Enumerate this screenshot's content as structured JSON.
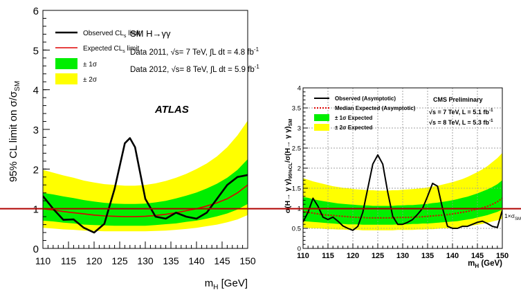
{
  "chart_data": [
    {
      "type": "line",
      "experiment": "ATLAS",
      "title": "ATLAS",
      "xlabel": "m",
      "xlabel_sub": "H",
      "xlabel_unit": " [GeV]",
      "ylabel": "95% CL limit on σ/σ",
      "ylabel_sub": "SM",
      "xlim": [
        110,
        150
      ],
      "ylim": [
        0,
        6
      ],
      "xticks": [
        110,
        115,
        120,
        125,
        130,
        135,
        140,
        145,
        150
      ],
      "yticks": [
        0,
        1,
        2,
        3,
        4,
        5,
        6
      ],
      "legend": {
        "observed": "Observed CL",
        "observed_sub": "s",
        "observed_suffix": " limit",
        "expected": "Expected CL",
        "expected_sub": "s",
        "expected_suffix": " limit",
        "one_sigma": "± 1σ",
        "two_sigma": "± 2σ"
      },
      "info": {
        "channel": "SM H→γγ",
        "line1_pre": "Data 2011, √s= 7 TeV, ∫L dt = 4.8 fb",
        "line1_sup": "-1",
        "line2_pre": "Data 2012, √s= 8 TeV, ∫L dt = 5.9 fb",
        "line2_sup": "-1"
      },
      "x": [
        110,
        112,
        114,
        116,
        118,
        120,
        122,
        124,
        126,
        127,
        128,
        130,
        132,
        134,
        136,
        138,
        140,
        142,
        144,
        146,
        148,
        150
      ],
      "observed": [
        1.32,
        1.0,
        0.72,
        0.73,
        0.52,
        0.4,
        0.62,
        1.5,
        2.65,
        2.78,
        2.55,
        1.25,
        0.8,
        0.75,
        0.9,
        0.8,
        0.75,
        0.9,
        1.25,
        1.6,
        1.8,
        1.85
      ],
      "expected": [
        1.0,
        0.97,
        0.93,
        0.9,
        0.87,
        0.84,
        0.82,
        0.81,
        0.8,
        0.8,
        0.8,
        0.81,
        0.83,
        0.86,
        0.9,
        0.95,
        1.0,
        1.07,
        1.15,
        1.25,
        1.4,
        1.6
      ],
      "band_1sigma": {
        "low": [
          0.7,
          0.68,
          0.65,
          0.63,
          0.6,
          0.59,
          0.58,
          0.57,
          0.57,
          0.57,
          0.57,
          0.57,
          0.59,
          0.61,
          0.63,
          0.67,
          0.7,
          0.75,
          0.81,
          0.88,
          0.98,
          1.12
        ],
        "high": [
          1.4,
          1.36,
          1.31,
          1.27,
          1.22,
          1.18,
          1.15,
          1.13,
          1.12,
          1.12,
          1.12,
          1.13,
          1.16,
          1.2,
          1.26,
          1.33,
          1.41,
          1.51,
          1.63,
          1.78,
          1.98,
          2.25
        ]
      },
      "band_2sigma": {
        "low": [
          0.52,
          0.5,
          0.48,
          0.47,
          0.45,
          0.44,
          0.43,
          0.43,
          0.43,
          0.43,
          0.43,
          0.43,
          0.44,
          0.45,
          0.47,
          0.49,
          0.52,
          0.56,
          0.6,
          0.66,
          0.73,
          0.84
        ],
        "high": [
          1.98,
          1.91,
          1.84,
          1.78,
          1.71,
          1.66,
          1.62,
          1.6,
          1.58,
          1.58,
          1.58,
          1.6,
          1.64,
          1.7,
          1.78,
          1.88,
          2.0,
          2.14,
          2.32,
          2.55,
          2.85,
          3.22
        ]
      },
      "colors": {
        "one_sigma": "#00ee00",
        "two_sigma": "#ffff00",
        "observed": "#000000",
        "expected": "#dd0000"
      }
    },
    {
      "type": "line",
      "experiment": "CMS",
      "title": "CMS Preliminary",
      "xlabel": "m",
      "xlabel_sub": "H",
      "xlabel_unit": " (GeV)",
      "ylabel": "σ(H→ γ γ)",
      "ylabel_sub1": "95%CL",
      "ylabel_mid": "/σ(H→ γ γ)",
      "ylabel_sub2": "SM",
      "xlim": [
        110,
        150
      ],
      "ylim": [
        0,
        4
      ],
      "xticks": [
        110,
        115,
        120,
        125,
        130,
        135,
        140,
        145,
        150
      ],
      "yticks": [
        0,
        0.5,
        1,
        1.5,
        2,
        2.5,
        3,
        3.5,
        4
      ],
      "ytick_labels": [
        "0",
        "0.5",
        "1",
        "1.5",
        "2",
        "2.5",
        "3",
        "3.5",
        "4"
      ],
      "legend": {
        "observed": "Observed (Asymptotic)",
        "expected": "Median Expected (Asymptotic)",
        "one_sigma": "± 1σ Expected",
        "two_sigma": "± 2σ Expected"
      },
      "info": {
        "line1_pre": "√s = 7 TeV, L = 5.1 fb",
        "line1_sup": "-1",
        "line2_pre": "√s = 8 TeV, L = 5.3 fb",
        "line2_sup": "-1"
      },
      "annotation": {
        "text": "1×σ",
        "sub": "SM"
      },
      "x": [
        110,
        111,
        112,
        113,
        114,
        115,
        116,
        117,
        118,
        119,
        120,
        121,
        122,
        123,
        124,
        125,
        126,
        127,
        128,
        129,
        130,
        131,
        132,
        133,
        134,
        135,
        136,
        137,
        138,
        139,
        140,
        141,
        142,
        143,
        144,
        145,
        146,
        147,
        148,
        149,
        150
      ],
      "observed": [
        0.66,
        0.9,
        1.25,
        1.05,
        0.78,
        0.72,
        0.78,
        0.68,
        0.56,
        0.5,
        0.45,
        0.55,
        0.9,
        1.5,
        2.1,
        2.33,
        2.1,
        1.4,
        0.8,
        0.6,
        0.6,
        0.65,
        0.72,
        0.85,
        1.0,
        1.3,
        1.62,
        1.55,
        1.0,
        0.55,
        0.5,
        0.5,
        0.55,
        0.55,
        0.6,
        0.65,
        0.68,
        0.62,
        0.55,
        0.52,
        0.95
      ],
      "expected": [
        0.92,
        0.9,
        0.88,
        0.86,
        0.84,
        0.83,
        0.82,
        0.81,
        0.8,
        0.79,
        0.78,
        0.77,
        0.77,
        0.76,
        0.76,
        0.76,
        0.76,
        0.76,
        0.76,
        0.77,
        0.77,
        0.77,
        0.78,
        0.78,
        0.79,
        0.8,
        0.81,
        0.82,
        0.83,
        0.84,
        0.86,
        0.88,
        0.9,
        0.92,
        0.95,
        0.98,
        1.01,
        1.05,
        1.1,
        1.16,
        1.25
      ],
      "band_1sigma": {
        "low": [
          0.68,
          0.67,
          0.66,
          0.65,
          0.64,
          0.63,
          0.62,
          0.61,
          0.61,
          0.6,
          0.6,
          0.6,
          0.59,
          0.59,
          0.59,
          0.59,
          0.59,
          0.59,
          0.59,
          0.6,
          0.6,
          0.6,
          0.61,
          0.61,
          0.62,
          0.62,
          0.63,
          0.64,
          0.65,
          0.66,
          0.67,
          0.68,
          0.7,
          0.72,
          0.74,
          0.77,
          0.8,
          0.83,
          0.87,
          0.91,
          0.97
        ],
        "high": [
          1.28,
          1.26,
          1.23,
          1.2,
          1.18,
          1.16,
          1.14,
          1.12,
          1.11,
          1.1,
          1.09,
          1.08,
          1.07,
          1.07,
          1.06,
          1.06,
          1.06,
          1.06,
          1.06,
          1.07,
          1.07,
          1.08,
          1.08,
          1.09,
          1.1,
          1.11,
          1.13,
          1.14,
          1.16,
          1.18,
          1.2,
          1.23,
          1.26,
          1.29,
          1.33,
          1.37,
          1.42,
          1.47,
          1.53,
          1.6,
          1.7
        ]
      },
      "band_2sigma": {
        "low": [
          0.52,
          0.51,
          0.5,
          0.5,
          0.49,
          0.48,
          0.48,
          0.47,
          0.47,
          0.46,
          0.46,
          0.46,
          0.45,
          0.45,
          0.45,
          0.45,
          0.45,
          0.45,
          0.45,
          0.46,
          0.46,
          0.46,
          0.46,
          0.47,
          0.47,
          0.48,
          0.48,
          0.49,
          0.5,
          0.5,
          0.51,
          0.52,
          0.54,
          0.55,
          0.57,
          0.59,
          0.61,
          0.64,
          0.67,
          0.7,
          0.74
        ],
        "high": [
          1.75,
          1.71,
          1.67,
          1.64,
          1.61,
          1.58,
          1.55,
          1.53,
          1.51,
          1.5,
          1.48,
          1.47,
          1.46,
          1.45,
          1.45,
          1.44,
          1.44,
          1.44,
          1.45,
          1.45,
          1.46,
          1.47,
          1.48,
          1.49,
          1.5,
          1.52,
          1.54,
          1.56,
          1.59,
          1.62,
          1.65,
          1.69,
          1.73,
          1.78,
          1.84,
          1.9,
          1.97,
          2.05,
          2.15,
          2.25,
          2.38
        ]
      },
      "colors": {
        "one_sigma": "#00ee00",
        "two_sigma": "#ffff00",
        "observed": "#000000",
        "expected": "#dd0000"
      }
    }
  ],
  "overlay": {
    "reference_value": 1,
    "color": "#b00000"
  }
}
